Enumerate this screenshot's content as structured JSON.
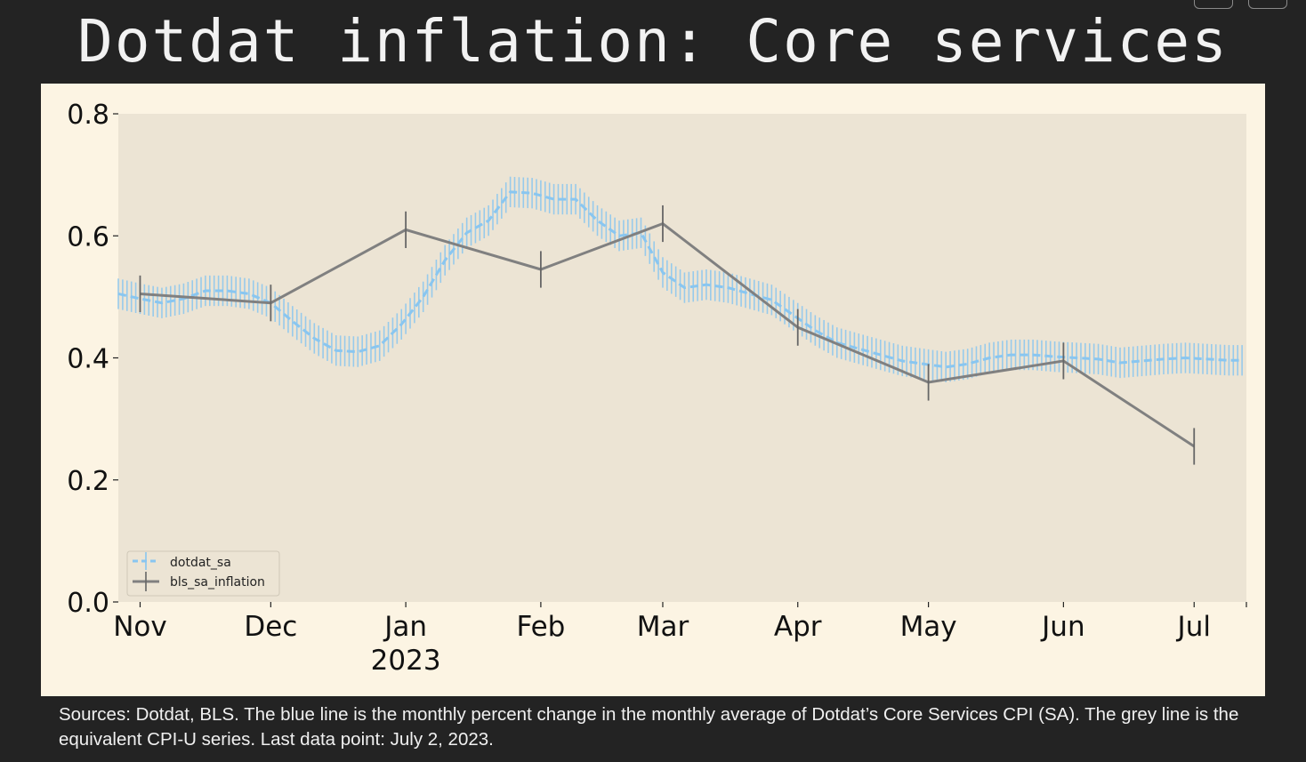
{
  "header": {
    "title": "Dotdat inflation: Core services"
  },
  "footer": {
    "source_note": "Sources: Dotdat, BLS. The blue line is the monthly percent change in the monthly average of Dotdat’s Core Services CPI (SA). The grey line is the equivalent CPI-U series.  Last data point: July 2, 2023."
  },
  "colors": {
    "page_background": "#232323",
    "panel_background": "#fcf4e3",
    "plot_background": "#ece4d4",
    "dotdat_line": "#89c6f0",
    "bls_line": "#808080"
  },
  "chart_data": {
    "type": "line",
    "title": "Dotdat inflation: Core services",
    "xlabel": "",
    "ylabel": "",
    "ylim": [
      0.0,
      0.8
    ],
    "yticks": [
      0.0,
      0.2,
      0.4,
      0.6,
      0.8
    ],
    "ytick_labels": [
      "0.0",
      "0.2",
      "0.4",
      "0.6",
      "0.8"
    ],
    "xlim": [
      "2022-10-27",
      "2023-07-13"
    ],
    "xticks": [
      {
        "date": "2022-11-01",
        "label": "Nov",
        "sublabel": ""
      },
      {
        "date": "2022-12-01",
        "label": "Dec",
        "sublabel": ""
      },
      {
        "date": "2023-01-01",
        "label": "Jan",
        "sublabel": "2023"
      },
      {
        "date": "2023-02-01",
        "label": "Feb",
        "sublabel": ""
      },
      {
        "date": "2023-03-01",
        "label": "Mar",
        "sublabel": ""
      },
      {
        "date": "2023-04-01",
        "label": "Apr",
        "sublabel": ""
      },
      {
        "date": "2023-05-01",
        "label": "May",
        "sublabel": ""
      },
      {
        "date": "2023-06-01",
        "label": "Jun",
        "sublabel": ""
      },
      {
        "date": "2023-07-01",
        "label": "Jul",
        "sublabel": ""
      }
    ],
    "grid": false,
    "legend_position": "bottom-left",
    "series": [
      {
        "name": "dotdat_sa",
        "style": "dashed with error bars",
        "points": [
          [
            "2022-10-27",
            0.505
          ],
          [
            "2022-11-01",
            0.497
          ],
          [
            "2022-11-06",
            0.49
          ],
          [
            "2022-11-11",
            0.497
          ],
          [
            "2022-11-16",
            0.51
          ],
          [
            "2022-11-21",
            0.51
          ],
          [
            "2022-11-26",
            0.505
          ],
          [
            "2022-12-01",
            0.49
          ],
          [
            "2022-12-06",
            0.46
          ],
          [
            "2022-12-11",
            0.432
          ],
          [
            "2022-12-16",
            0.412
          ],
          [
            "2022-12-21",
            0.41
          ],
          [
            "2022-12-26",
            0.42
          ],
          [
            "2022-12-31",
            0.455
          ],
          [
            "2023-01-05",
            0.5
          ],
          [
            "2023-01-10",
            0.56
          ],
          [
            "2023-01-15",
            0.605
          ],
          [
            "2023-01-20",
            0.625
          ],
          [
            "2023-01-25",
            0.672
          ],
          [
            "2023-01-30",
            0.67
          ],
          [
            "2023-02-04",
            0.66
          ],
          [
            "2023-02-09",
            0.66
          ],
          [
            "2023-02-14",
            0.625
          ],
          [
            "2023-02-19",
            0.6
          ],
          [
            "2023-02-24",
            0.605
          ],
          [
            "2023-03-01",
            0.54
          ],
          [
            "2023-03-06",
            0.515
          ],
          [
            "2023-03-11",
            0.52
          ],
          [
            "2023-03-16",
            0.515
          ],
          [
            "2023-03-21",
            0.505
          ],
          [
            "2023-03-26",
            0.495
          ],
          [
            "2023-03-31",
            0.47
          ],
          [
            "2023-04-05",
            0.445
          ],
          [
            "2023-04-10",
            0.425
          ],
          [
            "2023-04-15",
            0.415
          ],
          [
            "2023-04-20",
            0.405
          ],
          [
            "2023-04-25",
            0.395
          ],
          [
            "2023-04-30",
            0.39
          ],
          [
            "2023-05-05",
            0.385
          ],
          [
            "2023-05-10",
            0.39
          ],
          [
            "2023-05-15",
            0.4
          ],
          [
            "2023-05-20",
            0.405
          ],
          [
            "2023-05-25",
            0.405
          ],
          [
            "2023-05-30",
            0.402
          ],
          [
            "2023-06-04",
            0.4
          ],
          [
            "2023-06-09",
            0.398
          ],
          [
            "2023-06-14",
            0.392
          ],
          [
            "2023-06-19",
            0.395
          ],
          [
            "2023-06-24",
            0.398
          ],
          [
            "2023-06-29",
            0.4
          ],
          [
            "2023-07-04",
            0.398
          ],
          [
            "2023-07-09",
            0.396
          ],
          [
            "2023-07-12",
            0.396
          ]
        ],
        "error": 0.025
      },
      {
        "name": "bls_sa_inflation",
        "style": "solid with error bars",
        "points": [
          [
            "2022-11-01",
            0.505
          ],
          [
            "2022-12-01",
            0.49
          ],
          [
            "2023-01-01",
            0.61
          ],
          [
            "2023-02-01",
            0.545
          ],
          [
            "2023-03-01",
            0.62
          ],
          [
            "2023-04-01",
            0.45
          ],
          [
            "2023-05-01",
            0.36
          ],
          [
            "2023-06-01",
            0.395
          ],
          [
            "2023-07-01",
            0.255
          ]
        ],
        "error": 0.03
      }
    ]
  }
}
